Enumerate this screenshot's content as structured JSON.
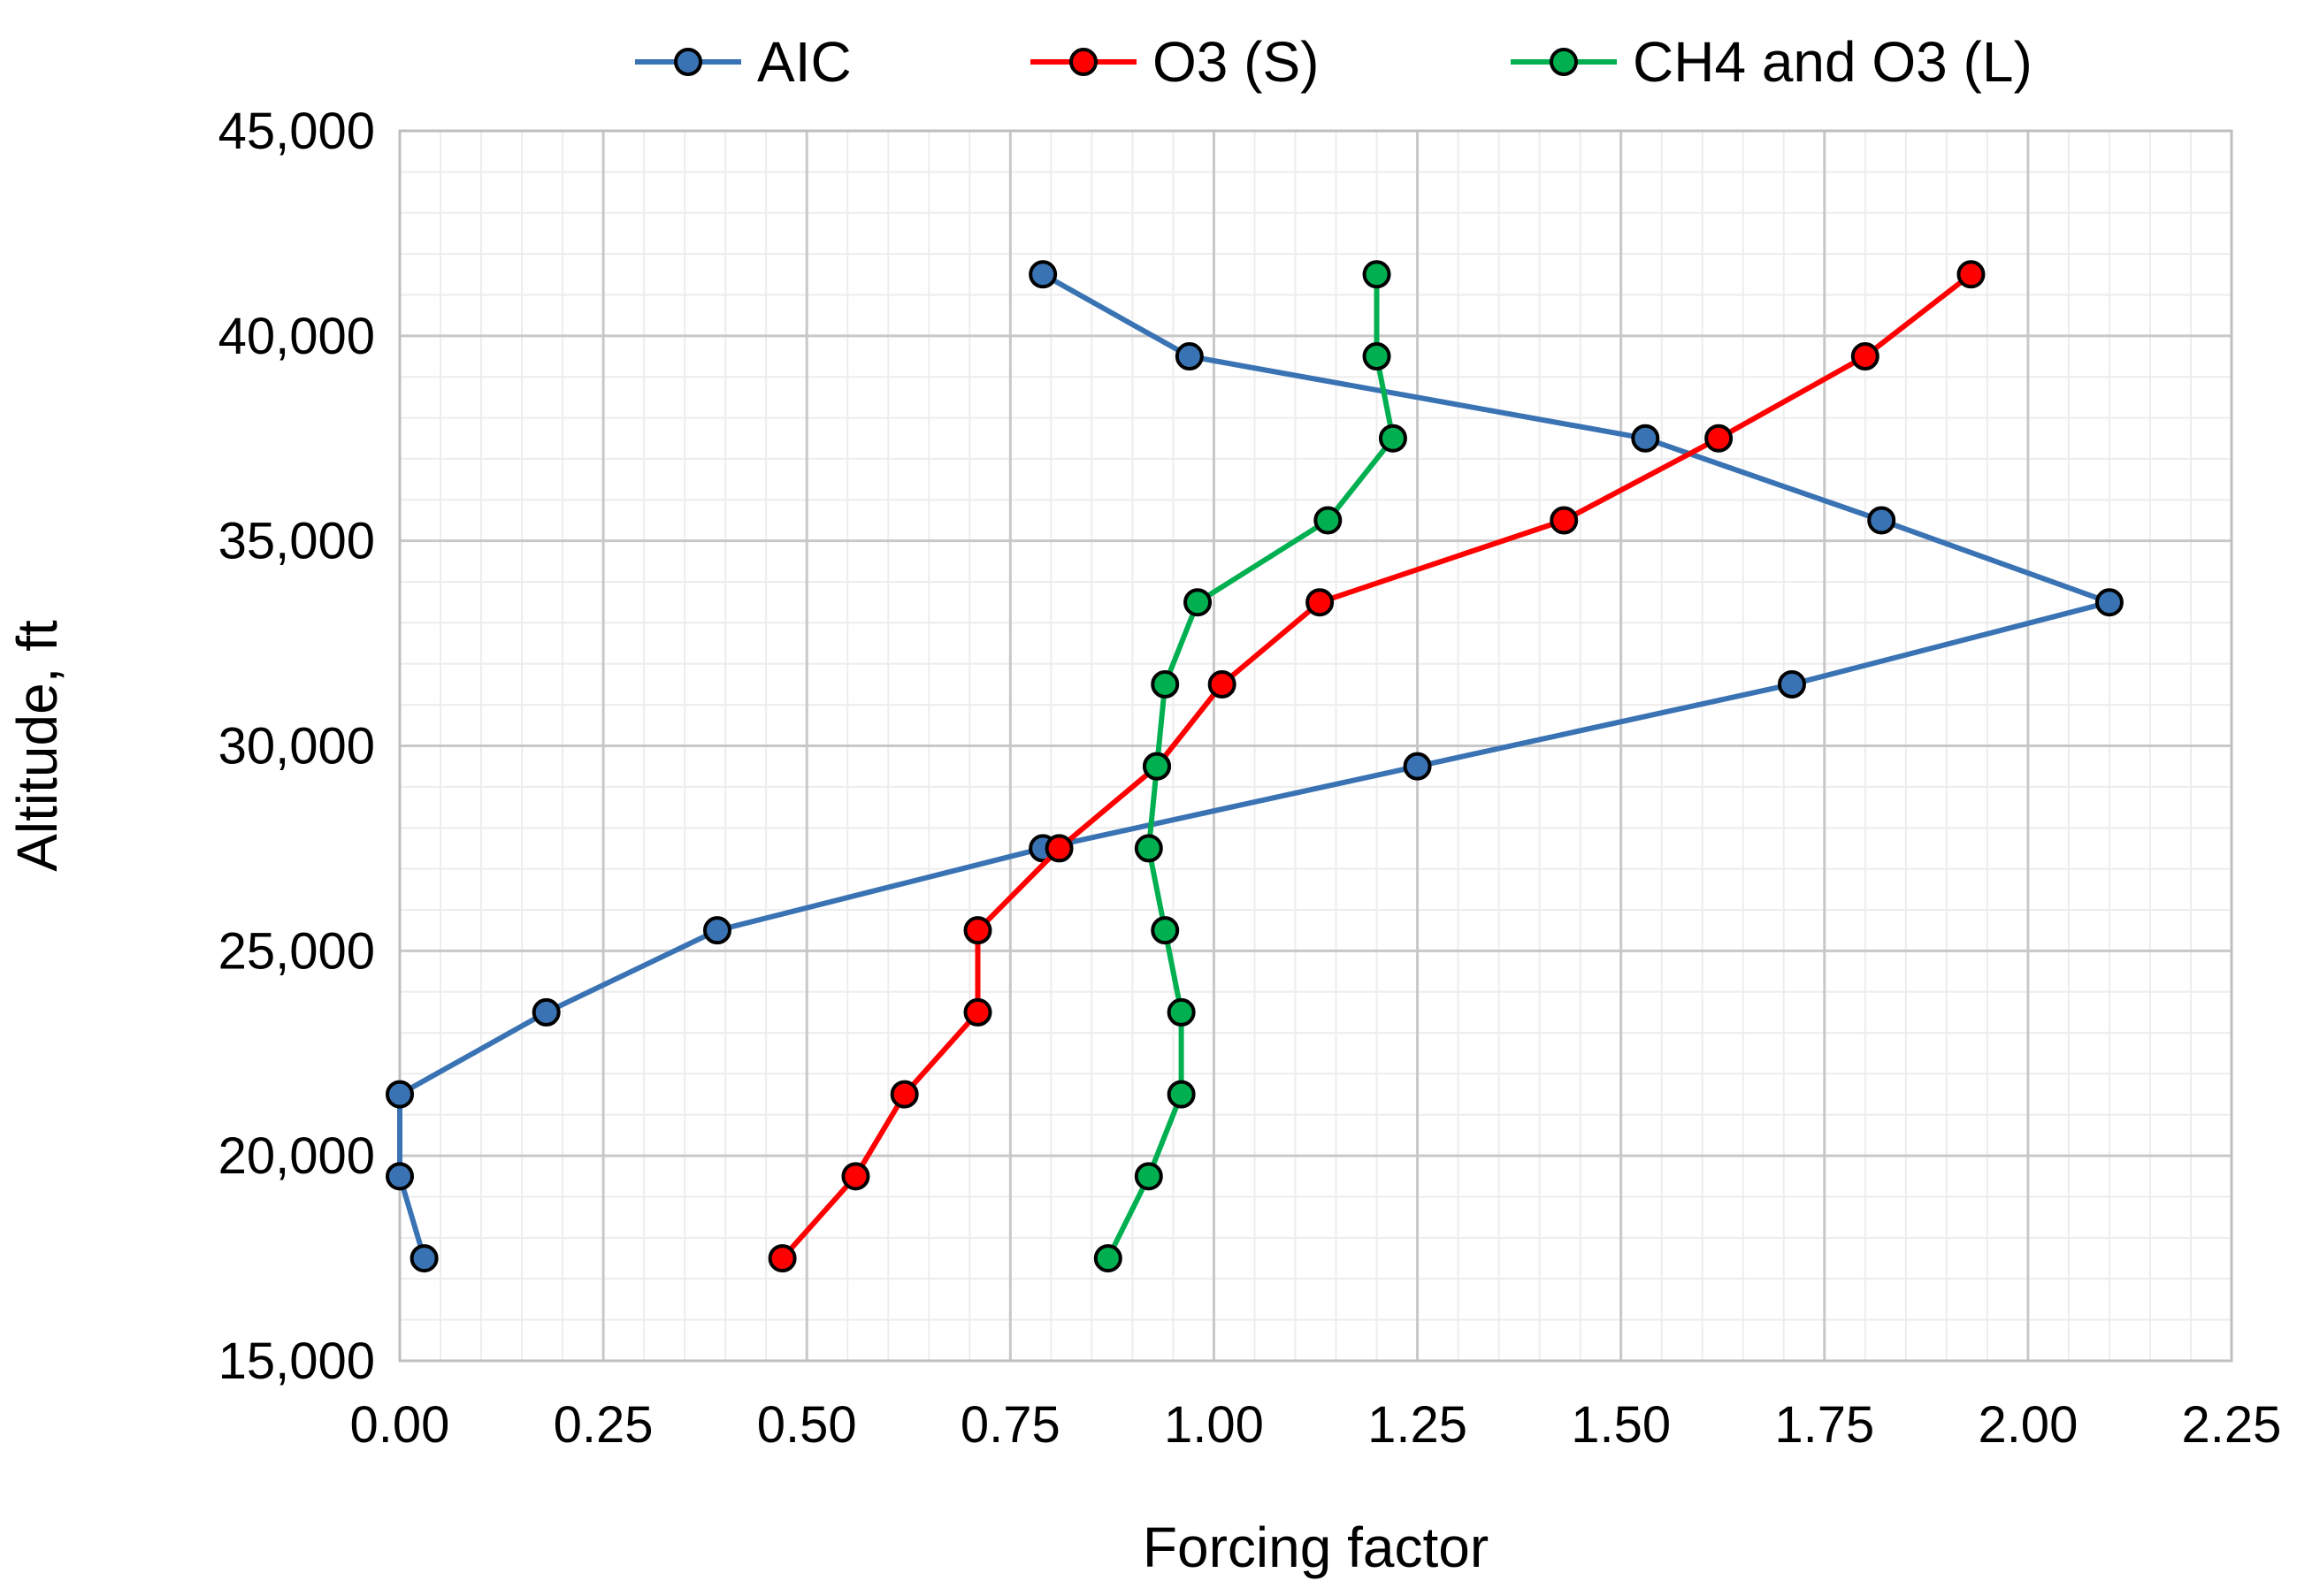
{
  "chart_data": {
    "type": "line",
    "title": "",
    "xlabel": "Forcing factor",
    "ylabel": "Altitude, ft",
    "xlim": [
      0,
      2.25
    ],
    "ylim": [
      15000,
      45000
    ],
    "x_ticks": [
      "0.00",
      "0.25",
      "0.50",
      "0.75",
      "1.00",
      "1.25",
      "1.50",
      "1.75",
      "2.00",
      "2.25"
    ],
    "y_ticks": [
      "15,000",
      "20,000",
      "25,000",
      "30,000",
      "35,000",
      "40,000",
      "45,000"
    ],
    "grid": true,
    "legend_position": "top",
    "series": [
      {
        "name": "AIC",
        "color": "#3a73b3",
        "points": [
          {
            "x": 0.03,
            "y": 17500
          },
          {
            "x": 0.0,
            "y": 19500
          },
          {
            "x": 0.0,
            "y": 21500
          },
          {
            "x": 0.18,
            "y": 23500
          },
          {
            "x": 0.39,
            "y": 25500
          },
          {
            "x": 0.79,
            "y": 27500
          },
          {
            "x": 1.25,
            "y": 29500
          },
          {
            "x": 1.71,
            "y": 31500
          },
          {
            "x": 2.1,
            "y": 33500
          },
          {
            "x": 1.82,
            "y": 35500
          },
          {
            "x": 1.53,
            "y": 37500
          },
          {
            "x": 0.97,
            "y": 39500
          },
          {
            "x": 0.79,
            "y": 41500
          }
        ]
      },
      {
        "name": "O3 (S)",
        "color": "#ff0000",
        "points": [
          {
            "x": 0.47,
            "y": 17500
          },
          {
            "x": 0.56,
            "y": 19500
          },
          {
            "x": 0.62,
            "y": 21500
          },
          {
            "x": 0.71,
            "y": 23500
          },
          {
            "x": 0.71,
            "y": 25500
          },
          {
            "x": 0.81,
            "y": 27500
          },
          {
            "x": 0.93,
            "y": 29500
          },
          {
            "x": 1.01,
            "y": 31500
          },
          {
            "x": 1.13,
            "y": 33500
          },
          {
            "x": 1.43,
            "y": 35500
          },
          {
            "x": 1.62,
            "y": 37500
          },
          {
            "x": 1.8,
            "y": 39500
          },
          {
            "x": 1.93,
            "y": 41500
          }
        ]
      },
      {
        "name": "CH4 and O3 (L)",
        "color": "#00b050",
        "points": [
          {
            "x": 0.87,
            "y": 17500
          },
          {
            "x": 0.92,
            "y": 19500
          },
          {
            "x": 0.96,
            "y": 21500
          },
          {
            "x": 0.96,
            "y": 23500
          },
          {
            "x": 0.94,
            "y": 25500
          },
          {
            "x": 0.92,
            "y": 27500
          },
          {
            "x": 0.93,
            "y": 29500
          },
          {
            "x": 0.94,
            "y": 31500
          },
          {
            "x": 0.98,
            "y": 33500
          },
          {
            "x": 1.14,
            "y": 35500
          },
          {
            "x": 1.22,
            "y": 37500
          },
          {
            "x": 1.2,
            "y": 39500
          },
          {
            "x": 1.2,
            "y": 41500
          }
        ]
      }
    ]
  }
}
